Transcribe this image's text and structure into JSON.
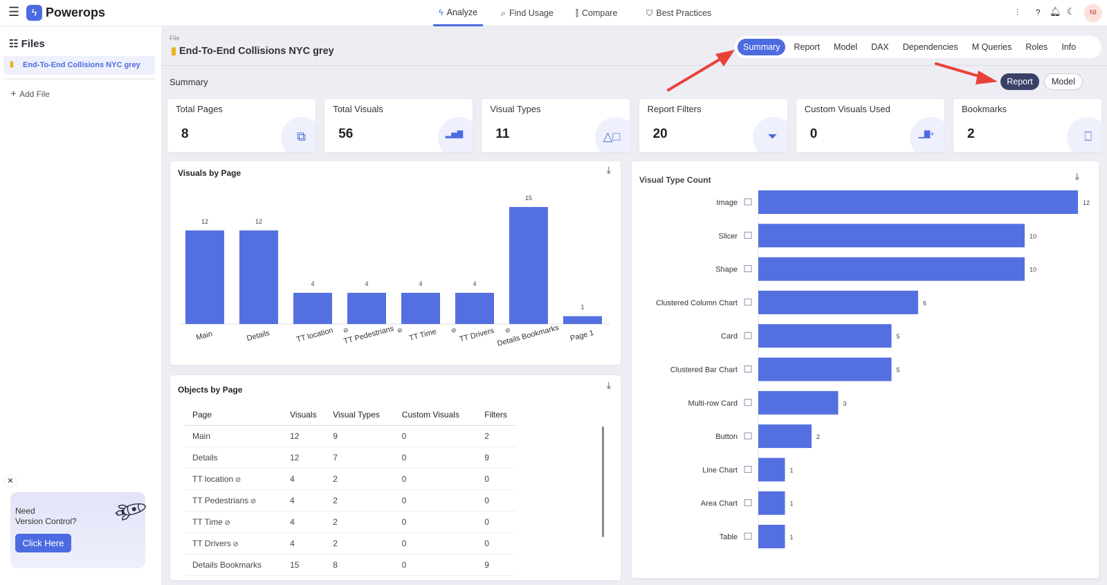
{
  "app": {
    "name": "Powerops",
    "avatar": "NI"
  },
  "nav": [
    {
      "label": "Analyze",
      "icon": "bolt-icon"
    },
    {
      "label": "Find Usage",
      "icon": "search-icon"
    },
    {
      "label": "Compare",
      "icon": "compare-icon"
    },
    {
      "label": "Best Practices",
      "icon": "shield-check-icon"
    }
  ],
  "sidebar": {
    "title": "Files",
    "files": [
      {
        "label": "End-To-End Collisions NYC grey"
      }
    ],
    "add_file": "Add File",
    "promo": {
      "line1": "Need",
      "line2": "Version Control?",
      "button": "Click Here"
    }
  },
  "header": {
    "file_label": "File",
    "file_name": "End-To-End Collisions NYC grey",
    "tabs": [
      "Summary",
      "Report",
      "Model",
      "DAX",
      "Dependencies",
      "M Queries",
      "Roles",
      "Info"
    ],
    "active_tab": "Summary"
  },
  "summary": {
    "title": "Summary",
    "toggle": [
      "Report",
      "Model"
    ],
    "toggle_active": "Report"
  },
  "stats": [
    {
      "label": "Total Pages",
      "value": "8",
      "icon": "pages-icon"
    },
    {
      "label": "Total Visuals",
      "value": "56",
      "icon": "bar-chart-icon"
    },
    {
      "label": "Visual Types",
      "value": "11",
      "icon": "shapes-icon"
    },
    {
      "label": "Report Filters",
      "value": "20",
      "icon": "filter-icon"
    },
    {
      "label": "Custom Visuals Used",
      "value": "0",
      "icon": "chart-add-icon"
    },
    {
      "label": "Bookmarks",
      "value": "2",
      "icon": "bookmark-icon"
    }
  ],
  "colors": {
    "accent": "#4d6be0",
    "bar": "#5470e0",
    "arrow": "#e8413a",
    "toggle_active": "#3b4068"
  },
  "chart_data": [
    {
      "type": "bar",
      "title": "Visuals by Page",
      "categories": [
        "Main",
        "Details",
        "TT location",
        "TT Pedestrians",
        "TT Time",
        "TT Drivers",
        "Details Bookmarks",
        "Page 1"
      ],
      "hidden": [
        false,
        false,
        true,
        true,
        true,
        true,
        false,
        false
      ],
      "values": [
        12,
        12,
        4,
        4,
        4,
        4,
        15,
        1
      ],
      "ylim": [
        0,
        15
      ]
    },
    {
      "type": "bar",
      "orientation": "horizontal",
      "title": "Visual Type Count",
      "categories": [
        "Image",
        "Slicer",
        "Shape",
        "Clustered Column Chart",
        "Card",
        "Clustered Bar Chart",
        "Multi-row Card",
        "Button",
        "Line Chart",
        "Area Chart",
        "Table"
      ],
      "values": [
        12,
        10,
        10,
        6,
        5,
        5,
        3,
        2,
        1,
        1,
        1
      ],
      "xlim": [
        0,
        12
      ]
    }
  ],
  "objects": {
    "title": "Objects by Page",
    "columns": [
      "Page",
      "Visuals",
      "Visual Types",
      "Custom Visuals",
      "Filters"
    ],
    "rows": [
      [
        "Main",
        "12",
        "9",
        "0",
        "2",
        false
      ],
      [
        "Details",
        "12",
        "7",
        "0",
        "9",
        false
      ],
      [
        "TT location",
        "4",
        "2",
        "0",
        "0",
        true
      ],
      [
        "TT Pedestrians",
        "4",
        "2",
        "0",
        "0",
        true
      ],
      [
        "TT Time",
        "4",
        "2",
        "0",
        "0",
        true
      ],
      [
        "TT Drivers",
        "4",
        "2",
        "0",
        "0",
        true
      ],
      [
        "Details Bookmarks",
        "15",
        "8",
        "0",
        "9",
        false
      ]
    ]
  }
}
